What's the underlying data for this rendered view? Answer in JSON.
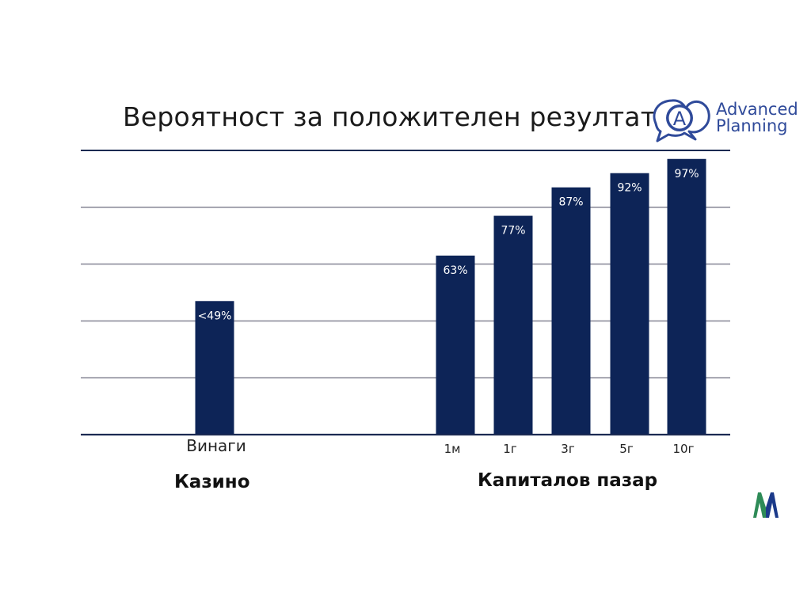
{
  "title": "Вероятност за положителен резултат",
  "logo": {
    "line1": "Advanced",
    "line2": "Planning",
    "badge": "A",
    "color": "#2f4a9a"
  },
  "group_labels": {
    "left": "Казино",
    "right": "Капиталов пазар"
  },
  "m_logo": {
    "letter": "M",
    "colors": [
      "#2e8b57",
      "#1b3a8a"
    ]
  },
  "colors": {
    "bar": "#0d2457",
    "grid": "#8e8e9c",
    "axis": "#1b2a52",
    "bar_label": "#ffffff"
  },
  "chart_data": {
    "type": "bar",
    "categories": [
      "Винаги",
      "1м",
      "1г",
      "3г",
      "5г",
      "10г"
    ],
    "values": [
      47,
      63,
      77,
      87,
      92,
      97
    ],
    "data_labels": [
      "<49%",
      "63%",
      "77%",
      "87%",
      "92%",
      "97%"
    ],
    "groups": [
      {
        "name": "Казино",
        "categories": [
          "Винаги"
        ]
      },
      {
        "name": "Капиталов пазар",
        "categories": [
          "1м",
          "1г",
          "3г",
          "5г",
          "10г"
        ]
      }
    ],
    "ylim": [
      0,
      100
    ],
    "grid": true,
    "title": "Вероятност за положителен резултат",
    "xlabel": "",
    "ylabel": ""
  }
}
